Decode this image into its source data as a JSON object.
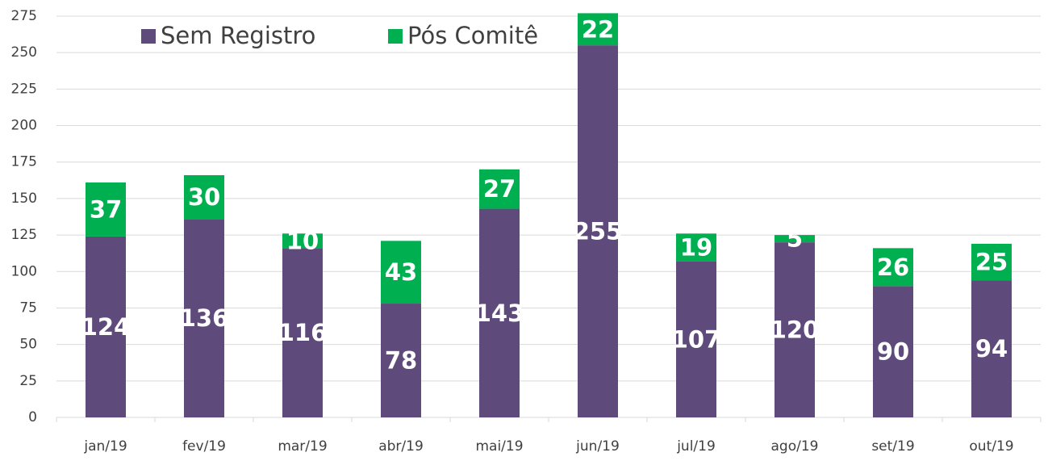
{
  "chart_data": {
    "type": "stacked_bar",
    "categories": [
      "jan/19",
      "fev/19",
      "mar/19",
      "abr/19",
      "mai/19",
      "jun/19",
      "jul/19",
      "ago/19",
      "set/19",
      "out/19"
    ],
    "series": [
      {
        "name": "Sem Registro",
        "color": "#5f4b7b",
        "values": [
          124,
          136,
          116,
          78,
          143,
          255,
          107,
          120,
          90,
          94
        ]
      },
      {
        "name": "Pós Comitê",
        "color": "#00b050",
        "values": [
          37,
          30,
          10,
          43,
          27,
          22,
          19,
          5,
          26,
          25
        ]
      }
    ],
    "ylim": [
      0,
      275
    ],
    "yticks": [
      0,
      25,
      50,
      75,
      100,
      125,
      150,
      175,
      200,
      225,
      250,
      275
    ],
    "grid": true,
    "legend": "top-left"
  }
}
